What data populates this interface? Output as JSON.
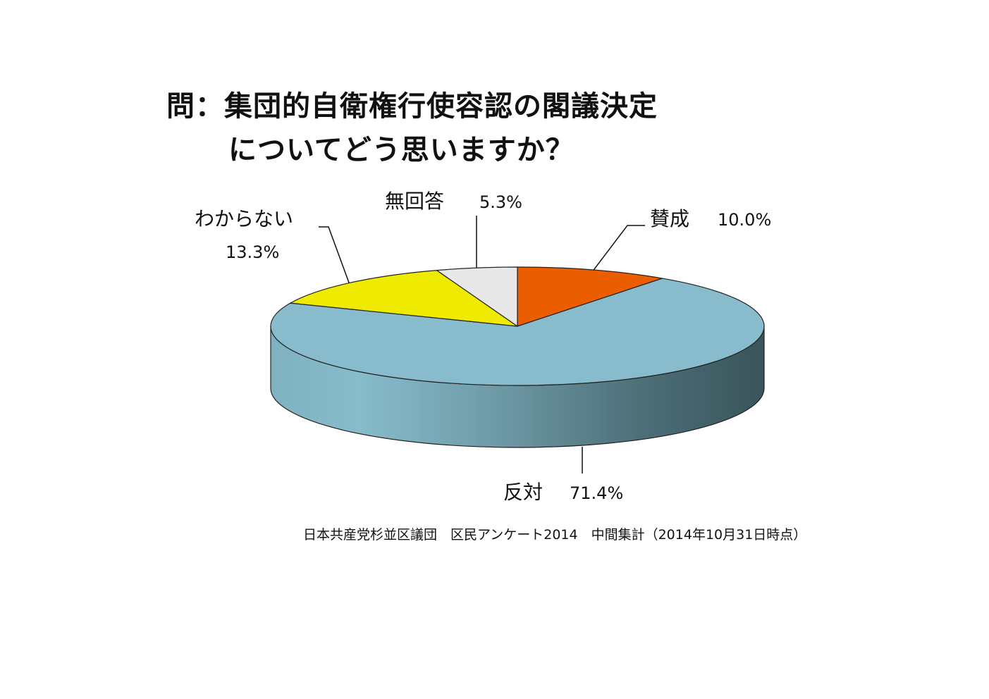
{
  "title": {
    "line1": "問：集団的自衛権行使容認の閣議決定",
    "line2": "についてどう思いますか？"
  },
  "chart_data": {
    "type": "pie",
    "style": "3d",
    "slices": [
      {
        "label": "賛成",
        "value": 10.0,
        "display": "10.0%",
        "color": "#ea5e00"
      },
      {
        "label": "反対",
        "value": 71.4,
        "display": "71.4%",
        "color": "#88bccc"
      },
      {
        "label": "わからない",
        "value": 13.3,
        "display": "13.3%",
        "color": "#eeeb00"
      },
      {
        "label": "無回答",
        "value": 5.3,
        "display": "5.3%",
        "color": "#e8e8e8"
      }
    ]
  },
  "source": "日本共産党杉並区議団　区民アンケート2014　中間集計（2014年10月31日時点）"
}
